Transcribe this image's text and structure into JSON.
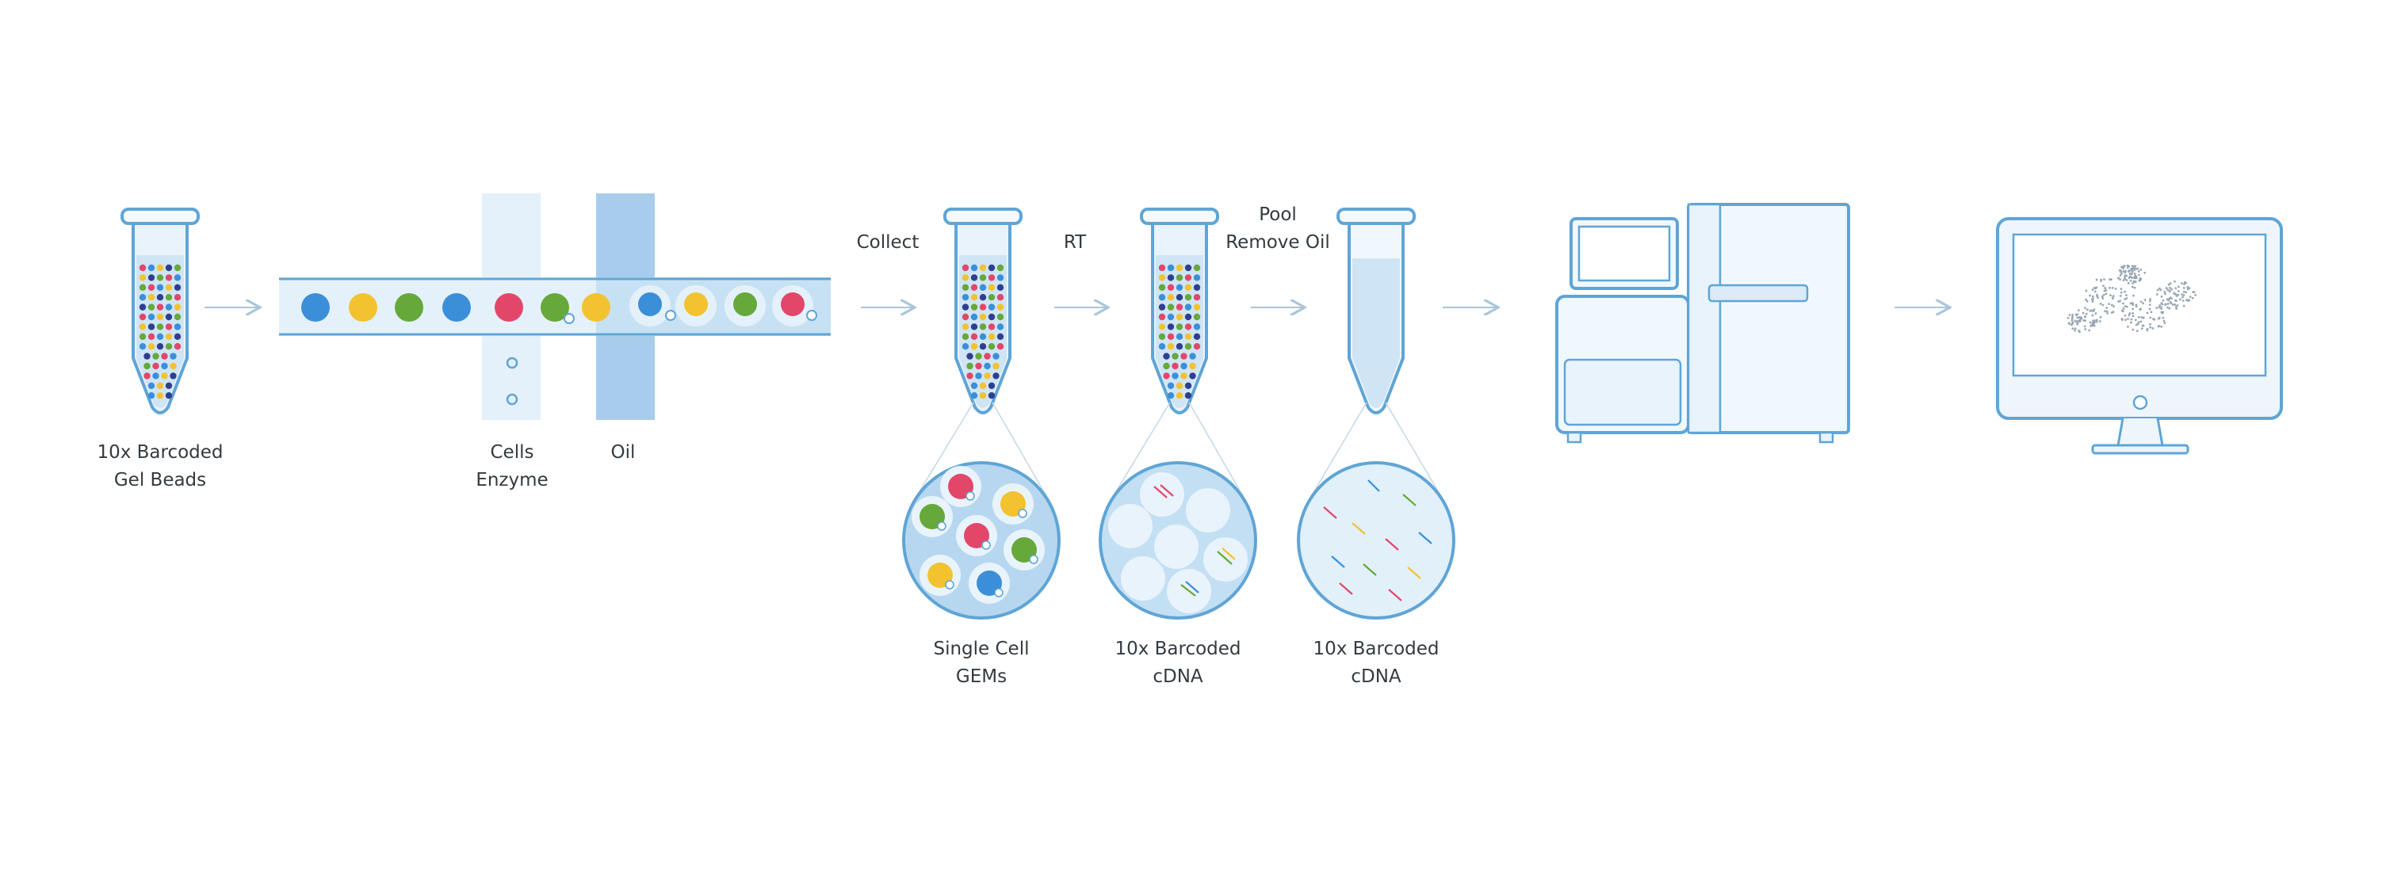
{
  "labels": {
    "gel_beads": [
      "10x Barcoded",
      "Gel Beads"
    ],
    "cells_enzyme": [
      "Cells",
      "Enzyme"
    ],
    "oil": "Oil",
    "collect": "Collect",
    "rt": "RT",
    "pool_remove_oil": [
      "Pool",
      "Remove Oil"
    ],
    "single_cell_gems": [
      "Single Cell",
      "GEMs"
    ],
    "barcoded_cdna_1": [
      "10x Barcoded",
      "cDNA"
    ],
    "barcoded_cdna_2": [
      "10x Barcoded",
      "cDNA"
    ]
  },
  "colors": {
    "outline": "#5fa5d6",
    "fill_light": "#e4f1fb",
    "fill_mid": "#bcdcf1",
    "arrow": "#aac6da",
    "bead_blue": "#3b8fd9",
    "bead_yellow": "#f2c230",
    "bead_green": "#66a83a",
    "bead_red": "#e2476a",
    "bead_dark": "#2f3f8f",
    "text": "#333a40"
  },
  "icons": [
    "tube-icon",
    "chip-icon",
    "droplet-icon",
    "sequencer-icon",
    "monitor-icon",
    "arrow-icon"
  ]
}
